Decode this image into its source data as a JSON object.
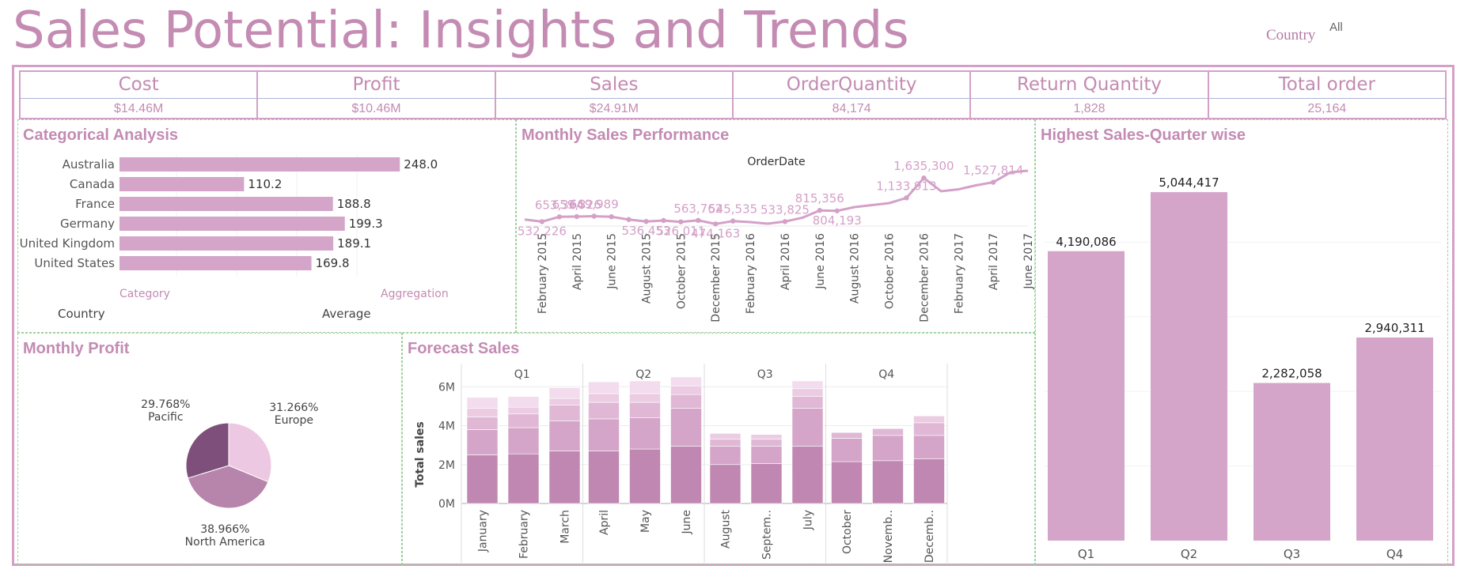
{
  "page_title": "Sales Potential: Insights and Trends",
  "filter": {
    "label": "Country",
    "value": "All"
  },
  "kpis": [
    {
      "title": "Cost",
      "value": "$14.46M"
    },
    {
      "title": "Profit",
      "value": "$10.46M"
    },
    {
      "title": "Sales",
      "value": "$24.91M"
    },
    {
      "title": "OrderQuantity",
      "value": "84,174"
    },
    {
      "title": "Return Quantity",
      "value": "1,828"
    },
    {
      "title": "Total order",
      "value": "25,164"
    }
  ],
  "panels": {
    "categorical": {
      "title": "Categorical Analysis",
      "param_labels": [
        "Category",
        "Aggregation"
      ],
      "param_values": [
        "Country",
        "Average"
      ]
    },
    "monthly_sales": {
      "title": "Monthly Sales Performance"
    },
    "quarter": {
      "title": "Highest Sales-Quarter wise"
    },
    "monthly_profit": {
      "title": "Monthly Profit"
    },
    "forecast": {
      "title": "Forecast Sales"
    }
  },
  "colors": {
    "title": "#c48bb3",
    "bar": "#d4a5c9",
    "line": "#d4a0c8",
    "border": "#d4a0c8",
    "panel_border": "#9dd19d",
    "pie": [
      "#edc8e2",
      "#b784ac",
      "#7e4f7a"
    ],
    "stack": [
      "#bf87b1",
      "#d4a5c9",
      "#e0b8d6",
      "#ebcce3",
      "#f2dced"
    ]
  },
  "chart_data": [
    {
      "id": "categorical",
      "type": "bar",
      "orientation": "horizontal",
      "title": "Categorical Analysis",
      "categories": [
        "Australia",
        "Canada",
        "France",
        "Germany",
        "United Kingdom",
        "United States"
      ],
      "values": [
        248.0,
        110.2,
        188.8,
        199.3,
        189.1,
        169.8
      ],
      "value_labels": [
        "248.0",
        "110.2",
        "188.8",
        "199.3",
        "189.1",
        "169.8"
      ],
      "xlim": [
        0,
        280
      ]
    },
    {
      "id": "monthly_sales",
      "type": "line",
      "title": "Monthly Sales Performance",
      "xlabel": "OrderDate",
      "x": [
        "2015-01",
        "2015-02",
        "2015-03",
        "2015-04",
        "2015-05",
        "2015-06",
        "2015-07",
        "2015-08",
        "2015-09",
        "2015-10",
        "2015-11",
        "2015-12",
        "2016-01",
        "2016-02",
        "2016-03",
        "2016-04",
        "2016-05",
        "2016-06",
        "2016-07",
        "2016-08",
        "2016-09",
        "2016-10",
        "2016-11",
        "2016-12",
        "2017-01",
        "2017-02",
        "2017-03",
        "2017-04",
        "2017-05",
        "2017-06"
      ],
      "values": [
        585000,
        532226,
        653364,
        659326,
        669989,
        655000,
        585000,
        536453,
        560000,
        526011,
        563762,
        474163,
        545535,
        520000,
        480000,
        533825,
        630000,
        815356,
        804193,
        900000,
        950000,
        1000000,
        1133913,
        1635300,
        1300000,
        1350000,
        1450000,
        1527814,
        1780000,
        1820000
      ],
      "data_labels": [
        {
          "x": "2015-02",
          "label": "532,226"
        },
        {
          "x": "2015-03",
          "label": "653,364"
        },
        {
          "x": "2015-04",
          "label": "659,326"
        },
        {
          "x": "2015-05",
          "label": "669,989"
        },
        {
          "x": "2015-08",
          "label": "536,453"
        },
        {
          "x": "2015-10",
          "label": "526,011"
        },
        {
          "x": "2015-11",
          "label": "563,762"
        },
        {
          "x": "2015-12",
          "label": "474,163"
        },
        {
          "x": "2016-01",
          "label": "545,535"
        },
        {
          "x": "2016-04",
          "label": "533,825"
        },
        {
          "x": "2016-06",
          "label": "815,356"
        },
        {
          "x": "2016-07",
          "label": "804,193"
        },
        {
          "x": "2016-11",
          "label": "1,133,913"
        },
        {
          "x": "2016-12",
          "label": "1,635,300"
        },
        {
          "x": "2017-04",
          "label": "1,527,814"
        }
      ],
      "x_ticks": [
        "February 2015",
        "April 2015",
        "June 2015",
        "August 2015",
        "October 2015",
        "December 2015",
        "February 2016",
        "April 2016",
        "June 2016",
        "August 2016",
        "October 2016",
        "December 2016",
        "February 2017",
        "April 2017",
        "June 2017"
      ],
      "marker_months": [
        "2015-02",
        "2015-03",
        "2015-04",
        "2015-05",
        "2015-06",
        "2015-07",
        "2015-08",
        "2015-09",
        "2015-10",
        "2015-11",
        "2015-12",
        "2016-01",
        "2016-04",
        "2016-06",
        "2016-07",
        "2016-11",
        "2016-12",
        "2017-04"
      ]
    },
    {
      "id": "quarter",
      "type": "bar",
      "title": "Highest Sales-Quarter wise",
      "categories": [
        "Q1",
        "Q2",
        "Q3",
        "Q4"
      ],
      "values": [
        4190086,
        5044417,
        2282058,
        2940311
      ],
      "value_labels": [
        "4,190,086",
        "5,044,417",
        "2,282,058",
        "2,940,311"
      ],
      "ylim": [
        0,
        5400000
      ]
    },
    {
      "id": "monthly_profit",
      "type": "pie",
      "title": "Monthly Profit",
      "slices": [
        {
          "label": "Europe",
          "value": 31.266,
          "pct": "31.266%"
        },
        {
          "label": "North America",
          "value": 38.966,
          "pct": "38.966%"
        },
        {
          "label": "Pacific",
          "value": 29.768,
          "pct": "29.768%"
        }
      ]
    },
    {
      "id": "forecast",
      "type": "bar",
      "stacked": true,
      "title": "Forecast Sales",
      "ylabel": "Total sales",
      "yticks": [
        "0M",
        "2M",
        "4M",
        "6M"
      ],
      "ylim": [
        0,
        6500000
      ],
      "groups": [
        {
          "name": "Q1",
          "categories": [
            "January",
            "February",
            "March"
          ]
        },
        {
          "name": "Q2",
          "categories": [
            "April",
            "May",
            "June"
          ]
        },
        {
          "name": "Q3",
          "categories": [
            "August",
            "Septem..",
            "July"
          ]
        },
        {
          "name": "Q4",
          "categories": [
            "October",
            "Novemb..",
            "Decemb.."
          ]
        }
      ],
      "stacks": [
        [
          2500000,
          1300000,
          650000,
          450000,
          550000
        ],
        [
          2550000,
          1350000,
          700000,
          350000,
          550000
        ],
        [
          2700000,
          1550000,
          800000,
          350000,
          550000
        ],
        [
          2700000,
          1650000,
          850000,
          450000,
          600000
        ],
        [
          2800000,
          1600000,
          800000,
          450000,
          650000
        ],
        [
          2950000,
          1950000,
          700000,
          450000,
          450000
        ],
        [
          2000000,
          950000,
          350000,
          300000,
          0
        ],
        [
          2050000,
          900000,
          350000,
          250000,
          0
        ],
        [
          2950000,
          1950000,
          600000,
          400000,
          400000
        ],
        [
          2150000,
          1200000,
          300000,
          0,
          0
        ],
        [
          2200000,
          1300000,
          350000,
          0,
          0
        ],
        [
          2300000,
          1200000,
          650000,
          350000,
          0
        ]
      ]
    }
  ]
}
